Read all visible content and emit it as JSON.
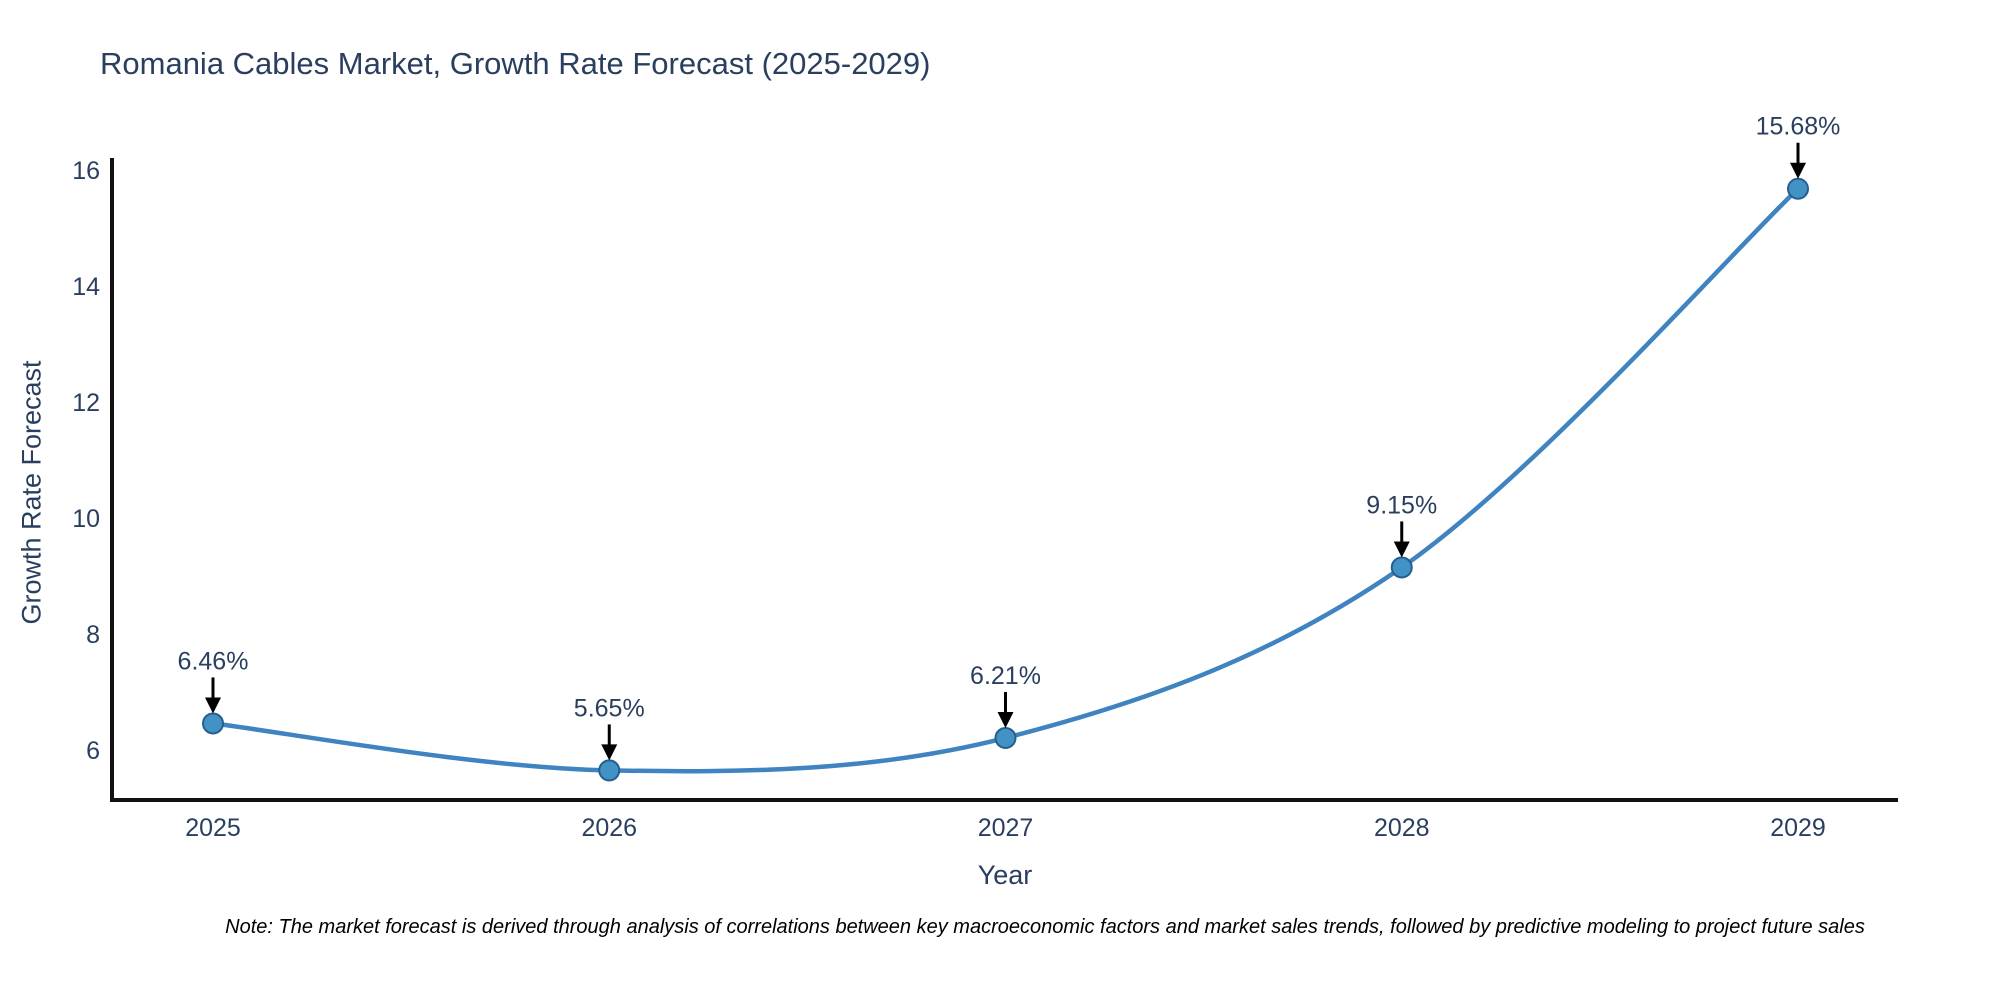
{
  "note": "Note: The market forecast is derived through analysis of correlations between key macroeconomic factors and market sales trends, followed by predictive modeling to project future sales",
  "chart_data": {
    "type": "line",
    "title": "Romania Cables Market, Growth Rate Forecast (2025-2029)",
    "xlabel": "Year",
    "ylabel": "Growth Rate Forecast",
    "categories": [
      "2025",
      "2026",
      "2027",
      "2028",
      "2029"
    ],
    "values": [
      6.46,
      5.65,
      6.21,
      9.15,
      15.68
    ],
    "point_labels": [
      "6.46%",
      "5.65%",
      "6.21%",
      "9.15%",
      "15.68%"
    ],
    "yticks": [
      6,
      8,
      10,
      12,
      14,
      16
    ],
    "ylim": [
      5.14,
      16.21
    ],
    "grid": false,
    "legend": "none",
    "line_shape": "spline",
    "annotation_style": "label-with-down-arrow",
    "colors": {
      "line": "#3f83c0",
      "marker": "#4292c6",
      "marker_edge": "#265f8f",
      "text": "#2a3f5f",
      "axis": "#121212",
      "arrow": "#000000",
      "background": "#ffffff"
    }
  }
}
